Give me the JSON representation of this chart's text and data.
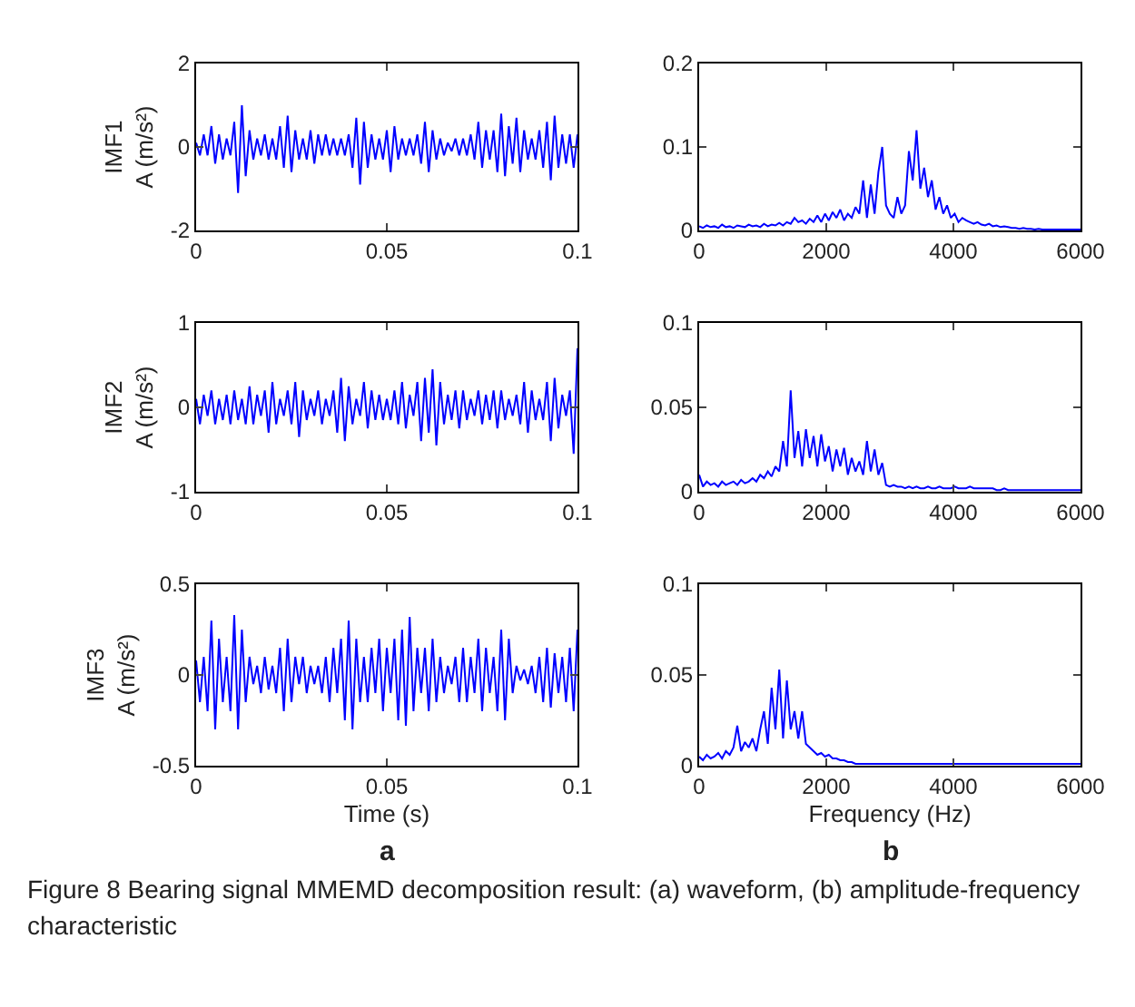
{
  "chart_data": [
    {
      "type": "line",
      "ylabel": "IMF1\nA (m/s²)",
      "color": "#0000ff",
      "xlim": [
        0,
        0.1
      ],
      "xticks": [
        0,
        0.05,
        0.1
      ],
      "ylim": [
        -2,
        2
      ],
      "yticks": [
        -2,
        0,
        2
      ],
      "x": [
        0,
        0.001,
        0.002,
        0.003,
        0.004,
        0.005,
        0.006,
        0.007,
        0.008,
        0.009,
        0.01,
        0.011,
        0.012,
        0.013,
        0.014,
        0.015,
        0.016,
        0.017,
        0.018,
        0.019,
        0.02,
        0.021,
        0.022,
        0.023,
        0.024,
        0.025,
        0.026,
        0.027,
        0.028,
        0.029,
        0.03,
        0.031,
        0.032,
        0.033,
        0.034,
        0.035,
        0.036,
        0.037,
        0.038,
        0.039,
        0.04,
        0.041,
        0.042,
        0.043,
        0.044,
        0.045,
        0.046,
        0.047,
        0.048,
        0.049,
        0.05,
        0.051,
        0.052,
        0.053,
        0.054,
        0.055,
        0.056,
        0.057,
        0.058,
        0.059,
        0.06,
        0.061,
        0.062,
        0.063,
        0.064,
        0.065,
        0.066,
        0.067,
        0.068,
        0.069,
        0.07,
        0.071,
        0.072,
        0.073,
        0.074,
        0.075,
        0.076,
        0.077,
        0.078,
        0.079,
        0.08,
        0.081,
        0.082,
        0.083,
        0.084,
        0.085,
        0.086,
        0.087,
        0.088,
        0.089,
        0.09,
        0.091,
        0.092,
        0.093,
        0.094,
        0.095,
        0.096,
        0.097,
        0.098,
        0.099,
        0.1
      ],
      "values": [
        0.1,
        -0.2,
        0.3,
        -0.2,
        0.5,
        -0.4,
        0.3,
        -0.3,
        0.2,
        -0.2,
        0.6,
        -1.1,
        1.0,
        -0.7,
        0.4,
        -0.3,
        0.2,
        -0.2,
        0.3,
        -0.3,
        0.2,
        -0.3,
        0.5,
        -0.5,
        0.75,
        -0.6,
        0.4,
        -0.3,
        0.2,
        -0.3,
        0.4,
        -0.4,
        0.3,
        -0.2,
        0.3,
        -0.2,
        0.2,
        -0.2,
        0.2,
        -0.2,
        0.3,
        -0.5,
        0.7,
        -0.9,
        0.6,
        -0.5,
        0.3,
        -0.3,
        0.2,
        -0.3,
        0.4,
        -0.6,
        0.5,
        -0.3,
        0.2,
        -0.2,
        0.2,
        -0.2,
        0.3,
        -0.4,
        0.6,
        -0.6,
        0.4,
        -0.3,
        0.2,
        -0.2,
        0.1,
        -0.1,
        0.2,
        -0.2,
        0.2,
        -0.2,
        0.3,
        -0.3,
        0.6,
        -0.5,
        0.4,
        -0.3,
        0.4,
        -0.6,
        0.8,
        -0.7,
        0.5,
        -0.4,
        0.7,
        -0.6,
        0.4,
        -0.3,
        0.2,
        -0.3,
        0.4,
        -0.5,
        0.6,
        -0.8,
        0.75,
        -0.5,
        0.3,
        -0.4,
        0.3,
        -0.5,
        0.3
      ]
    },
    {
      "type": "line",
      "color": "#0000ff",
      "xlim": [
        0,
        6000
      ],
      "xticks": [
        0,
        2000,
        4000,
        6000
      ],
      "ylim": [
        0,
        0.2
      ],
      "yticks": [
        0,
        0.1,
        0.2
      ],
      "x": [
        0,
        60,
        120,
        180,
        240,
        300,
        360,
        420,
        480,
        540,
        600,
        660,
        720,
        780,
        840,
        900,
        960,
        1020,
        1080,
        1140,
        1200,
        1260,
        1320,
        1380,
        1440,
        1500,
        1560,
        1620,
        1680,
        1740,
        1800,
        1860,
        1920,
        1980,
        2040,
        2100,
        2160,
        2220,
        2280,
        2340,
        2400,
        2460,
        2520,
        2580,
        2640,
        2700,
        2760,
        2820,
        2880,
        2940,
        3000,
        3060,
        3120,
        3180,
        3240,
        3300,
        3360,
        3420,
        3480,
        3540,
        3600,
        3660,
        3720,
        3780,
        3840,
        3900,
        3960,
        4020,
        4080,
        4140,
        4200,
        4260,
        4320,
        4380,
        4440,
        4500,
        4560,
        4620,
        4680,
        4740,
        4800,
        4860,
        4920,
        4980,
        5040,
        5100,
        5160,
        5220,
        5280,
        5340,
        5400,
        5460,
        5520,
        5580,
        5640,
        5700,
        5760,
        5820,
        5880,
        5940,
        6000
      ],
      "values": [
        0.005,
        0.003,
        0.006,
        0.004,
        0.005,
        0.003,
        0.007,
        0.004,
        0.005,
        0.003,
        0.006,
        0.005,
        0.004,
        0.007,
        0.005,
        0.006,
        0.004,
        0.008,
        0.005,
        0.007,
        0.006,
        0.009,
        0.006,
        0.01,
        0.008,
        0.015,
        0.01,
        0.012,
        0.008,
        0.014,
        0.01,
        0.018,
        0.01,
        0.02,
        0.012,
        0.022,
        0.015,
        0.025,
        0.012,
        0.02,
        0.015,
        0.028,
        0.02,
        0.06,
        0.015,
        0.055,
        0.02,
        0.07,
        0.1,
        0.03,
        0.02,
        0.015,
        0.04,
        0.02,
        0.03,
        0.095,
        0.06,
        0.12,
        0.05,
        0.075,
        0.04,
        0.06,
        0.025,
        0.04,
        0.02,
        0.03,
        0.015,
        0.02,
        0.01,
        0.015,
        0.012,
        0.01,
        0.008,
        0.01,
        0.007,
        0.006,
        0.008,
        0.005,
        0.006,
        0.004,
        0.005,
        0.004,
        0.003,
        0.003,
        0.002,
        0.003,
        0.002,
        0.002,
        0.001,
        0.002,
        0.001,
        0.001,
        0.001,
        0.001,
        0.001,
        0.001,
        0.001,
        0.001,
        0.001,
        0.001,
        0.001
      ]
    },
    {
      "type": "line",
      "ylabel": "IMF2\nA (m/s²)",
      "color": "#0000ff",
      "xlim": [
        0,
        0.1
      ],
      "xticks": [
        0,
        0.05,
        0.1
      ],
      "ylim": [
        -1,
        1
      ],
      "yticks": [
        -1,
        0,
        1
      ],
      "x": [
        0,
        0.001,
        0.002,
        0.003,
        0.004,
        0.005,
        0.006,
        0.007,
        0.008,
        0.009,
        0.01,
        0.011,
        0.012,
        0.013,
        0.014,
        0.015,
        0.016,
        0.017,
        0.018,
        0.019,
        0.02,
        0.021,
        0.022,
        0.023,
        0.024,
        0.025,
        0.026,
        0.027,
        0.028,
        0.029,
        0.03,
        0.031,
        0.032,
        0.033,
        0.034,
        0.035,
        0.036,
        0.037,
        0.038,
        0.039,
        0.04,
        0.041,
        0.042,
        0.043,
        0.044,
        0.045,
        0.046,
        0.047,
        0.048,
        0.049,
        0.05,
        0.051,
        0.052,
        0.053,
        0.054,
        0.055,
        0.056,
        0.057,
        0.058,
        0.059,
        0.06,
        0.061,
        0.062,
        0.063,
        0.064,
        0.065,
        0.066,
        0.067,
        0.068,
        0.069,
        0.07,
        0.071,
        0.072,
        0.073,
        0.074,
        0.075,
        0.076,
        0.077,
        0.078,
        0.079,
        0.08,
        0.081,
        0.082,
        0.083,
        0.084,
        0.085,
        0.086,
        0.087,
        0.088,
        0.089,
        0.09,
        0.091,
        0.092,
        0.093,
        0.094,
        0.095,
        0.096,
        0.097,
        0.098,
        0.099,
        0.1
      ],
      "values": [
        0.1,
        -0.2,
        0.15,
        -0.1,
        0.2,
        -0.2,
        0.1,
        -0.15,
        0.15,
        -0.2,
        0.2,
        -0.15,
        0.1,
        -0.2,
        0.25,
        -0.2,
        0.15,
        -0.1,
        0.2,
        -0.3,
        0.3,
        -0.2,
        0.1,
        -0.1,
        0.2,
        -0.2,
        0.3,
        -0.35,
        0.2,
        -0.15,
        0.1,
        -0.1,
        0.2,
        -0.2,
        0.1,
        -0.1,
        0.2,
        -0.3,
        0.35,
        -0.4,
        0.25,
        -0.2,
        0.1,
        -0.1,
        0.3,
        -0.25,
        0.2,
        -0.15,
        0.15,
        -0.15,
        0.1,
        -0.15,
        0.2,
        -0.2,
        0.3,
        -0.25,
        0.15,
        -0.1,
        0.3,
        -0.4,
        0.35,
        -0.3,
        0.45,
        -0.45,
        0.3,
        -0.2,
        0.15,
        -0.15,
        0.2,
        -0.25,
        0.2,
        -0.15,
        0.1,
        -0.1,
        0.2,
        -0.2,
        0.15,
        -0.15,
        0.2,
        -0.25,
        0.2,
        -0.15,
        0.1,
        -0.1,
        0.15,
        -0.2,
        0.3,
        -0.3,
        0.2,
        -0.15,
        0.1,
        -0.15,
        0.3,
        -0.4,
        0.35,
        -0.25,
        0.15,
        -0.1,
        0.2,
        -0.55,
        0.7
      ]
    },
    {
      "type": "line",
      "color": "#0000ff",
      "xlim": [
        0,
        6000
      ],
      "xticks": [
        0,
        2000,
        4000,
        6000
      ],
      "ylim": [
        0,
        0.1
      ],
      "yticks": [
        0,
        0.05,
        0.1
      ],
      "x": [
        0,
        60,
        120,
        180,
        240,
        300,
        360,
        420,
        480,
        540,
        600,
        660,
        720,
        780,
        840,
        900,
        960,
        1020,
        1080,
        1140,
        1200,
        1260,
        1320,
        1380,
        1440,
        1500,
        1560,
        1620,
        1680,
        1740,
        1800,
        1860,
        1920,
        1980,
        2040,
        2100,
        2160,
        2220,
        2280,
        2340,
        2400,
        2460,
        2520,
        2580,
        2640,
        2700,
        2760,
        2820,
        2880,
        2940,
        3000,
        3060,
        3120,
        3180,
        3240,
        3300,
        3360,
        3420,
        3480,
        3540,
        3600,
        3660,
        3720,
        3780,
        3840,
        3900,
        3960,
        4020,
        4080,
        4140,
        4200,
        4260,
        4320,
        4380,
        4440,
        4500,
        4560,
        4620,
        4680,
        4740,
        4800,
        4860,
        4920,
        4980,
        5040,
        5100,
        5160,
        5220,
        5280,
        5340,
        5400,
        5460,
        5520,
        5580,
        5640,
        5700,
        5760,
        5820,
        5880,
        5940,
        6000
      ],
      "values": [
        0.01,
        0.003,
        0.006,
        0.004,
        0.005,
        0.003,
        0.006,
        0.004,
        0.005,
        0.006,
        0.004,
        0.007,
        0.005,
        0.006,
        0.008,
        0.006,
        0.01,
        0.008,
        0.012,
        0.009,
        0.015,
        0.012,
        0.03,
        0.015,
        0.06,
        0.02,
        0.036,
        0.015,
        0.037,
        0.02,
        0.033,
        0.015,
        0.034,
        0.018,
        0.027,
        0.012,
        0.025,
        0.015,
        0.026,
        0.01,
        0.02,
        0.012,
        0.018,
        0.01,
        0.03,
        0.012,
        0.025,
        0.01,
        0.017,
        0.004,
        0.003,
        0.004,
        0.003,
        0.003,
        0.002,
        0.003,
        0.002,
        0.003,
        0.002,
        0.002,
        0.003,
        0.002,
        0.002,
        0.003,
        0.002,
        0.002,
        0.002,
        0.003,
        0.002,
        0.002,
        0.002,
        0.003,
        0.002,
        0.002,
        0.002,
        0.002,
        0.002,
        0.002,
        0.001,
        0.001,
        0.002,
        0.001,
        0.001,
        0.001,
        0.001,
        0.001,
        0.001,
        0.001,
        0.001,
        0.001,
        0.001,
        0.001,
        0.001,
        0.001,
        0.001,
        0.001,
        0.001,
        0.001,
        0.001,
        0.001,
        0.001
      ]
    },
    {
      "type": "line",
      "ylabel": "IMF3\nA (m/s²)",
      "xlabel": "Time (s)",
      "annotations": [
        "a"
      ],
      "color": "#0000ff",
      "xlim": [
        0,
        0.1
      ],
      "xticks": [
        0,
        0.05,
        0.1
      ],
      "ylim": [
        -0.5,
        0.5
      ],
      "yticks": [
        -0.5,
        0,
        0.5
      ],
      "x": [
        0,
        0.001,
        0.002,
        0.003,
        0.004,
        0.005,
        0.006,
        0.007,
        0.008,
        0.009,
        0.01,
        0.011,
        0.012,
        0.013,
        0.014,
        0.015,
        0.016,
        0.017,
        0.018,
        0.019,
        0.02,
        0.021,
        0.022,
        0.023,
        0.024,
        0.025,
        0.026,
        0.027,
        0.028,
        0.029,
        0.03,
        0.031,
        0.032,
        0.033,
        0.034,
        0.035,
        0.036,
        0.037,
        0.038,
        0.039,
        0.04,
        0.041,
        0.042,
        0.043,
        0.044,
        0.045,
        0.046,
        0.047,
        0.048,
        0.049,
        0.05,
        0.051,
        0.052,
        0.053,
        0.054,
        0.055,
        0.056,
        0.057,
        0.058,
        0.059,
        0.06,
        0.061,
        0.062,
        0.063,
        0.064,
        0.065,
        0.066,
        0.067,
        0.068,
        0.069,
        0.07,
        0.071,
        0.072,
        0.073,
        0.074,
        0.075,
        0.076,
        0.077,
        0.078,
        0.079,
        0.08,
        0.081,
        0.082,
        0.083,
        0.084,
        0.085,
        0.086,
        0.087,
        0.088,
        0.089,
        0.09,
        0.091,
        0.092,
        0.093,
        0.094,
        0.095,
        0.096,
        0.097,
        0.098,
        0.099,
        0.1
      ],
      "values": [
        0.08,
        -0.15,
        0.1,
        -0.2,
        0.3,
        -0.3,
        0.2,
        -0.15,
        0.1,
        -0.2,
        0.33,
        -0.3,
        0.25,
        -0.15,
        0.1,
        -0.05,
        0.05,
        -0.1,
        0.1,
        -0.08,
        0.05,
        -0.1,
        0.15,
        -0.2,
        0.2,
        -0.15,
        0.1,
        -0.05,
        0.1,
        -0.1,
        0.05,
        -0.05,
        0.05,
        -0.1,
        0.1,
        -0.15,
        0.15,
        -0.1,
        0.2,
        -0.25,
        0.3,
        -0.3,
        0.2,
        -0.15,
        0.1,
        -0.15,
        0.15,
        -0.1,
        0.2,
        -0.2,
        0.15,
        -0.1,
        0.2,
        -0.25,
        0.25,
        -0.28,
        0.32,
        -0.2,
        0.15,
        -0.1,
        0.15,
        -0.2,
        0.2,
        -0.15,
        0.1,
        -0.1,
        0.05,
        -0.05,
        0.1,
        -0.15,
        0.15,
        -0.15,
        0.1,
        -0.1,
        0.2,
        -0.2,
        0.15,
        -0.1,
        0.1,
        -0.2,
        0.25,
        -0.25,
        0.2,
        -0.1,
        0.05,
        -0.03,
        0.03,
        -0.05,
        0.05,
        -0.1,
        0.1,
        -0.15,
        0.15,
        -0.18,
        0.12,
        -0.1,
        0.1,
        -0.15,
        0.15,
        -0.2,
        0.25
      ]
    },
    {
      "type": "line",
      "xlabel": "Frequency (Hz)",
      "annotations": [
        "b",
        "Figure 8  Bearing signal MMEMD decomposition result: (a) waveform, (b) amplitude-frequency characteristic"
      ],
      "color": "#0000ff",
      "xlim": [
        0,
        6000
      ],
      "xticks": [
        0,
        2000,
        4000,
        6000
      ],
      "ylim": [
        0,
        0.1
      ],
      "yticks": [
        0,
        0.05,
        0.1
      ],
      "x": [
        0,
        60,
        120,
        180,
        240,
        300,
        360,
        420,
        480,
        540,
        600,
        660,
        720,
        780,
        840,
        900,
        960,
        1020,
        1080,
        1140,
        1200,
        1260,
        1320,
        1380,
        1440,
        1500,
        1560,
        1620,
        1680,
        1740,
        1800,
        1860,
        1920,
        1980,
        2040,
        2100,
        2160,
        2220,
        2280,
        2340,
        2400,
        2460,
        2520,
        2580,
        2640,
        2700,
        2760,
        2820,
        2880,
        2940,
        3000,
        3060,
        3120,
        3180,
        3240,
        3300,
        3360,
        3420,
        3480,
        3540,
        3600,
        3660,
        3720,
        3780,
        3840,
        3900,
        3960,
        4020,
        4080,
        4140,
        4200,
        4260,
        4320,
        4380,
        4440,
        4500,
        4560,
        4620,
        4680,
        4740,
        4800,
        4860,
        4920,
        4980,
        5040,
        5100,
        5160,
        5220,
        5280,
        5340,
        5400,
        5460,
        5520,
        5580,
        5640,
        5700,
        5760,
        5820,
        5880,
        5940,
        6000
      ],
      "values": [
        0.005,
        0.003,
        0.006,
        0.004,
        0.005,
        0.007,
        0.004,
        0.008,
        0.006,
        0.01,
        0.022,
        0.008,
        0.013,
        0.01,
        0.015,
        0.008,
        0.02,
        0.03,
        0.012,
        0.043,
        0.02,
        0.053,
        0.015,
        0.047,
        0.02,
        0.03,
        0.015,
        0.03,
        0.012,
        0.01,
        0.008,
        0.006,
        0.007,
        0.005,
        0.006,
        0.004,
        0.004,
        0.003,
        0.003,
        0.002,
        0.002,
        0.001,
        0.001,
        0.001,
        0.001,
        0.001,
        0.001,
        0.001,
        0.001,
        0.001,
        0.001,
        0.001,
        0.001,
        0.001,
        0.001,
        0.001,
        0.001,
        0.001,
        0.001,
        0.001,
        0.001,
        0.001,
        0.001,
        0.001,
        0.001,
        0.001,
        0.001,
        0.001,
        0.001,
        0.001,
        0.001,
        0.001,
        0.001,
        0.001,
        0.001,
        0.001,
        0.001,
        0.001,
        0.001,
        0.001,
        0.001,
        0.001,
        0.001,
        0.001,
        0.001,
        0.001,
        0.001,
        0.001,
        0.001,
        0.001,
        0.001,
        0.001,
        0.001,
        0.001,
        0.001,
        0.001,
        0.001,
        0.001,
        0.001,
        0.001,
        0.001
      ]
    }
  ]
}
